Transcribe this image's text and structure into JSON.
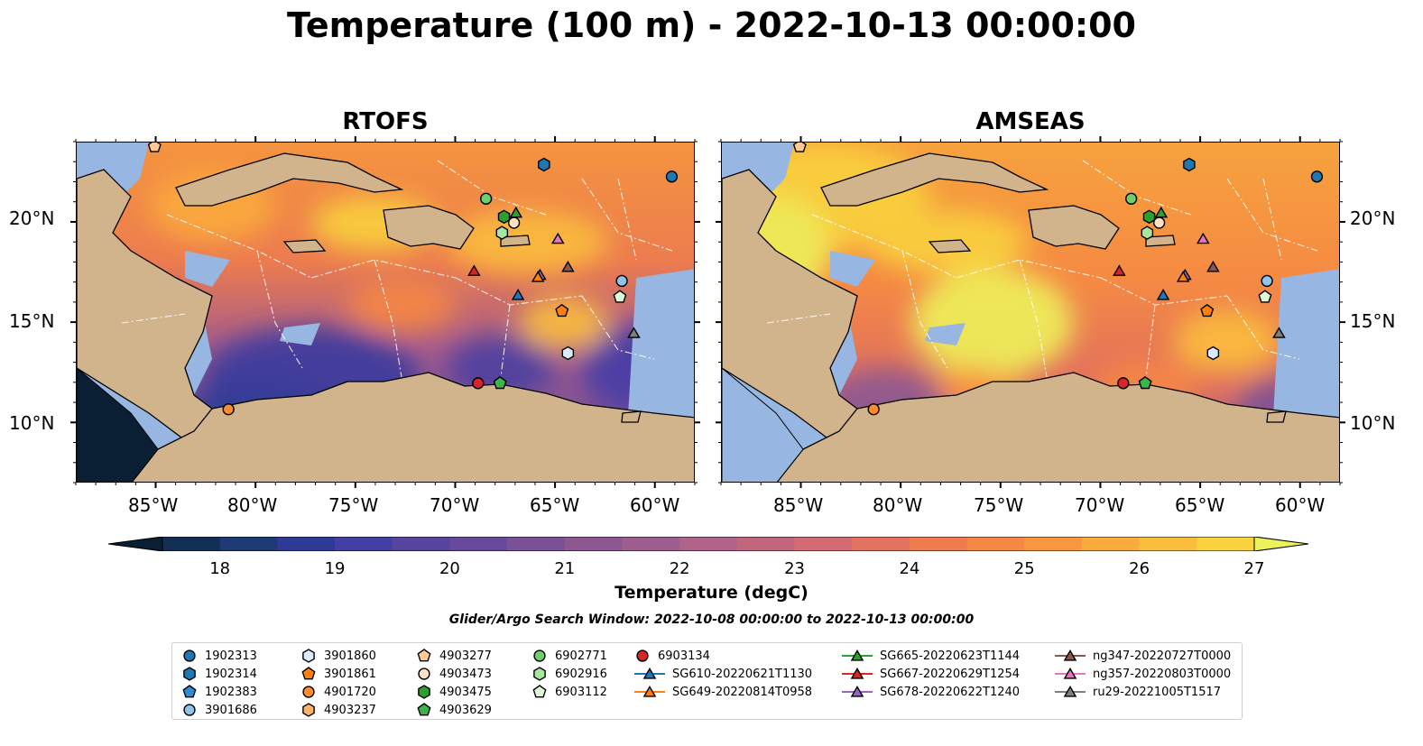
{
  "title": "Temperature (100 m) - 2022-10-13 00:00:00",
  "panels": [
    {
      "title": "RTOFS",
      "model": "rtofs"
    },
    {
      "title": "AMSEAS",
      "model": "amseas"
    }
  ],
  "x_ticks": [
    "85°W",
    "80°W",
    "75°W",
    "70°W",
    "65°W",
    "60°W"
  ],
  "y_ticks": [
    "20°N",
    "15°N",
    "10°N"
  ],
  "colorbar": {
    "label": "Temperature (degC)",
    "ticks": [
      "18",
      "19",
      "20",
      "21",
      "22",
      "23",
      "24",
      "25",
      "26",
      "27"
    ],
    "min": 17.5,
    "max": 27.0,
    "extend": "both",
    "colors": [
      "#0a1e34",
      "#142f57",
      "#1d3a77",
      "#2f3a98",
      "#443ea6",
      "#56449f",
      "#684a9c",
      "#7a5197",
      "#8d5892",
      "#9e5e8e",
      "#b16287",
      "#c4657e",
      "#d66a74",
      "#e47261",
      "#ef7b4e",
      "#f68745",
      "#f99741",
      "#fbaa3d",
      "#fbbd3d",
      "#f9d23e",
      "#eef25a"
    ]
  },
  "search_window": "Glider/Argo Search Window: 2022-10-08 00:00:00 to 2022-10-13 00:00:00",
  "colors": {
    "land": "#d2b48c",
    "shallow_water": "#97b6e1",
    "border": "#000000"
  },
  "legend": [
    {
      "label": "1902313",
      "marker": "circle",
      "color": "#1f77b4"
    },
    {
      "label": "1902314",
      "marker": "hexagon",
      "color": "#1f77b4"
    },
    {
      "label": "1902383",
      "marker": "pentagon",
      "color": "#2b8cd6"
    },
    {
      "label": "3901686",
      "marker": "circle",
      "color": "#8ec3ea"
    },
    {
      "label": "3901860",
      "marker": "hexagon",
      "color": "#dbeafb"
    },
    {
      "label": "3901861",
      "marker": "pentagon",
      "color": "#ff7f0e"
    },
    {
      "label": "4901720",
      "marker": "circle",
      "color": "#ff8c2b"
    },
    {
      "label": "4903237",
      "marker": "hexagon",
      "color": "#ffb26b"
    },
    {
      "label": "4903277",
      "marker": "pentagon",
      "color": "#ffc896"
    },
    {
      "label": "4903473",
      "marker": "circle",
      "color": "#ffe2c4"
    },
    {
      "label": "4903475",
      "marker": "hexagon",
      "color": "#2ca02c"
    },
    {
      "label": "4903629",
      "marker": "pentagon",
      "color": "#3cb44b"
    },
    {
      "label": "6902771",
      "marker": "circle",
      "color": "#6fcf6a"
    },
    {
      "label": "6902916",
      "marker": "hexagon",
      "color": "#a8e6a0"
    },
    {
      "label": "6903112",
      "marker": "pentagon",
      "color": "#dbf7d5"
    },
    {
      "label": "6903134",
      "marker": "circle",
      "color": "#d62728"
    },
    {
      "label": "SG610-20220621T1130",
      "marker": "triangle",
      "color": "#1f77b4",
      "line": true
    },
    {
      "label": "SG649-20220814T0958",
      "marker": "triangle",
      "color": "#ff7f0e",
      "line": true
    },
    {
      "label": "SG665-20220623T1144",
      "marker": "triangle",
      "color": "#2ca02c",
      "line": true
    },
    {
      "label": "SG667-20220629T1254",
      "marker": "triangle",
      "color": "#d62728",
      "line": true
    },
    {
      "label": "SG678-20220622T1240",
      "marker": "triangle",
      "color": "#9467bd",
      "line": true
    },
    {
      "label": "ng347-20220727T0000",
      "marker": "triangle",
      "color": "#8c564b",
      "line": true
    },
    {
      "label": "ng357-20220803T0000",
      "marker": "triangle",
      "color": "#e377c2",
      "line": true
    },
    {
      "label": "ru29-20221005T1517",
      "marker": "triangle",
      "color": "#7f7f7f",
      "line": true
    }
  ],
  "map_extent": {
    "lon": [
      -89,
      -58
    ],
    "lat": [
      7,
      24
    ]
  },
  "markers": [
    {
      "id": "1902313",
      "lon": -59.2,
      "lat": 22.3
    },
    {
      "id": "1902314",
      "lon": -65.6,
      "lat": 22.9
    },
    {
      "id": "4903277",
      "lon": -85.1,
      "lat": 23.8
    },
    {
      "id": "6902771",
      "lon": -68.5,
      "lat": 21.2
    },
    {
      "id": "4903475",
      "lon": -67.6,
      "lat": 20.3
    },
    {
      "id": "4903473",
      "lon": -67.1,
      "lat": 20.0
    },
    {
      "id": "SG665-20220623T1144",
      "lon": -67.0,
      "lat": 20.5
    },
    {
      "id": "6902916",
      "lon": -67.7,
      "lat": 19.5
    },
    {
      "id": "ng357-20220803T0000",
      "lon": -64.9,
      "lat": 19.2
    },
    {
      "id": "SG667-20220629T1254",
      "lon": -69.1,
      "lat": 17.6
    },
    {
      "id": "SG678-20220622T1240",
      "lon": -65.8,
      "lat": 17.4
    },
    {
      "id": "ng347-20220727T0000",
      "lon": -64.4,
      "lat": 17.8
    },
    {
      "id": "SG649-20220814T0958",
      "lon": -65.9,
      "lat": 17.3
    },
    {
      "id": "SG610-20220621T1130",
      "lon": -66.9,
      "lat": 16.4
    },
    {
      "id": "3901686",
      "lon": -61.7,
      "lat": 17.1
    },
    {
      "id": "6903112",
      "lon": -61.8,
      "lat": 16.3
    },
    {
      "id": "3901861",
      "lon": -64.7,
      "lat": 15.6
    },
    {
      "id": "3901860",
      "lon": -64.4,
      "lat": 13.5
    },
    {
      "id": "ru29-20221005T1517",
      "lon": -61.1,
      "lat": 14.5
    },
    {
      "id": "6903134",
      "lon": -68.9,
      "lat": 12.0
    },
    {
      "id": "4903629",
      "lon": -67.8,
      "lat": 12.0
    },
    {
      "id": "4901720",
      "lon": -81.4,
      "lat": 10.7
    }
  ]
}
